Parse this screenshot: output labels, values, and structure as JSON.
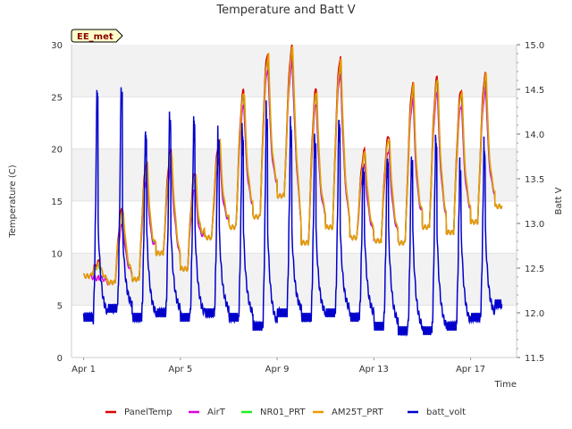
{
  "chart_data": {
    "type": "line",
    "title": "Temperature and Batt V",
    "station_badge": "EE_met",
    "xlabel": "Time",
    "ylabel_left": "Temperature (C)",
    "ylabel_right": "Batt V",
    "xlim": [
      0.5,
      18.9
    ],
    "ylim_left": [
      0,
      30
    ],
    "ylim_right": [
      11.5,
      15.0
    ],
    "x_ticks": [
      {
        "x": 1,
        "label": "Apr 1"
      },
      {
        "x": 5,
        "label": "Apr 5"
      },
      {
        "x": 9,
        "label": "Apr 9"
      },
      {
        "x": 13,
        "label": "Apr 13"
      },
      {
        "x": 17,
        "label": "Apr 17"
      }
    ],
    "y_ticks_left": [
      "0",
      "5",
      "10",
      "15",
      "20",
      "25",
      "30"
    ],
    "y_ticks_right": [
      "11.5",
      "12.0",
      "12.5",
      "13.0",
      "13.5",
      "14.0",
      "14.5",
      "15.0"
    ],
    "grid": "horizontal bands",
    "legend_position": "bottom",
    "temp_series_daily": {
      "days": [
        1,
        2,
        3,
        4,
        5,
        6,
        7,
        8,
        9,
        10,
        11,
        12,
        13,
        14,
        15,
        16,
        17,
        18
      ],
      "min": [
        7.8,
        7.2,
        7.5,
        10.0,
        8.5,
        11.5,
        12.5,
        13.5,
        15.5,
        11.0,
        12.5,
        11.5,
        11.2,
        11.0,
        12.5,
        12.0,
        13.0,
        14.5
      ],
      "max": [
        8.8,
        14.0,
        18.5,
        19.5,
        17.5,
        20.5,
        25.3,
        29.0,
        29.5,
        25.5,
        28.5,
        19.5,
        21.0,
        26.0,
        26.5,
        25.5,
        27.0,
        26.0
      ]
    },
    "series": [
      {
        "name": "PanelTemp",
        "color": "#dd0000",
        "offset": 0.3
      },
      {
        "name": "AirT",
        "color": "#dd00dd",
        "offset": -1.2
      },
      {
        "name": "NR01_PRT",
        "color": "#22ee22",
        "offset": 0.0
      },
      {
        "name": "AM25T_PRT",
        "color": "#ee9900",
        "offset": 0.1
      }
    ],
    "batt_volt": {
      "name": "batt_volt",
      "color": "#0000cc",
      "axis": "right",
      "daily_peak": [
        14.5,
        14.6,
        14.05,
        14.3,
        14.2,
        14.05,
        14.05,
        14.3,
        14.15,
        14.0,
        14.2,
        13.7,
        13.8,
        13.8,
        14.0,
        13.7,
        13.9,
        13.9
      ],
      "daily_min": [
        11.95,
        12.05,
        11.95,
        12.0,
        11.95,
        12.0,
        11.95,
        11.85,
        12.0,
        11.95,
        12.0,
        11.95,
        11.85,
        11.8,
        11.8,
        11.85,
        11.95,
        12.1
      ]
    }
  }
}
